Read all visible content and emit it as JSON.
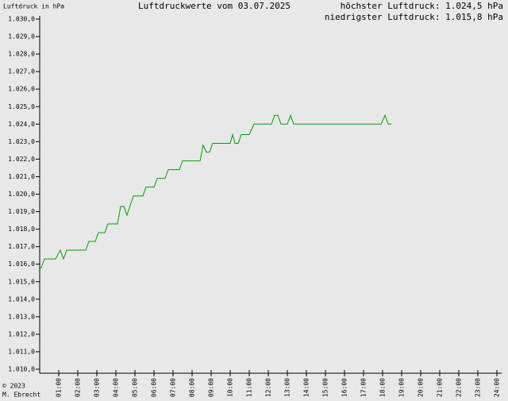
{
  "chart_data": {
    "type": "line",
    "y_label": "Luftdruck in hPa",
    "title": "Luftdruckwerte vom 03.07.2025",
    "max_text": "höchster Luftdruck: 1.024,5 hPa",
    "min_text": "niedrigster Luftdruck: 1.015,8 hPa",
    "footer": [
      "© 2023",
      "M. Ebrecht"
    ],
    "color": "#00a000",
    "x": [
      0,
      0.08,
      0.25,
      0.83,
      1.08,
      1.25,
      1.42,
      2.42,
      2.58,
      2.92,
      3.08,
      3.42,
      3.58,
      4.08,
      4.25,
      4.42,
      4.58,
      4.92,
      5.42,
      5.58,
      6.0,
      6.17,
      6.58,
      6.75,
      7.33,
      7.5,
      8.42,
      8.58,
      8.75,
      8.92,
      9.08,
      10.0,
      10.13,
      10.25,
      10.42,
      10.58,
      11.0,
      11.25,
      12.17,
      12.33,
      12.5,
      12.67,
      13.0,
      13.17,
      13.33,
      17.92,
      18.13,
      18.29,
      18.46
    ],
    "values": [
      1015.8,
      1015.8,
      1016.3,
      1016.3,
      1016.8,
      1016.3,
      1016.8,
      1016.8,
      1017.3,
      1017.3,
      1017.8,
      1017.8,
      1018.3,
      1018.3,
      1019.3,
      1019.3,
      1018.8,
      1019.9,
      1019.9,
      1020.4,
      1020.4,
      1020.9,
      1020.9,
      1021.4,
      1021.4,
      1021.9,
      1021.9,
      1022.8,
      1022.4,
      1022.4,
      1022.9,
      1022.9,
      1023.4,
      1022.9,
      1022.9,
      1023.4,
      1023.4,
      1024.0,
      1024.0,
      1024.5,
      1024.5,
      1024.0,
      1024.0,
      1024.5,
      1024.0,
      1024.0,
      1024.5,
      1024.0,
      1024.0
    ],
    "xlim": [
      0,
      24
    ],
    "xticks": [
      {
        "value": 1,
        "label": "01:00"
      },
      {
        "value": 2,
        "label": "02:00"
      },
      {
        "value": 3,
        "label": "03:00"
      },
      {
        "value": 4,
        "label": "04:00"
      },
      {
        "value": 5,
        "label": "05:00"
      },
      {
        "value": 6,
        "label": "06:00"
      },
      {
        "value": 7,
        "label": "07:00"
      },
      {
        "value": 8,
        "label": "08:00"
      },
      {
        "value": 9,
        "label": "09:00"
      },
      {
        "value": 10,
        "label": "10:00"
      },
      {
        "value": 11,
        "label": "11:00"
      },
      {
        "value": 12,
        "label": "12:00"
      },
      {
        "value": 13,
        "label": "13:00"
      },
      {
        "value": 14,
        "label": "14:00"
      },
      {
        "value": 15,
        "label": "15:00"
      },
      {
        "value": 16,
        "label": "16:00"
      },
      {
        "value": 17,
        "label": "17:00"
      },
      {
        "value": 18,
        "label": "18:00"
      },
      {
        "value": 19,
        "label": "19:00"
      },
      {
        "value": 20,
        "label": "20:00"
      },
      {
        "value": 21,
        "label": "21:00"
      },
      {
        "value": 22,
        "label": "22:00"
      },
      {
        "value": 23,
        "label": "23:00"
      },
      {
        "value": 24,
        "label": "24:00"
      }
    ],
    "ylim": [
      1010,
      1030
    ],
    "yticks": [
      {
        "value": 1010,
        "label": "1.010,0"
      },
      {
        "value": 1011,
        "label": "1.011,0"
      },
      {
        "value": 1012,
        "label": "1.012,0"
      },
      {
        "value": 1013,
        "label": "1.013,0"
      },
      {
        "value": 1014,
        "label": "1.014,0"
      },
      {
        "value": 1015,
        "label": "1.015,0"
      },
      {
        "value": 1016,
        "label": "1.016,0"
      },
      {
        "value": 1017,
        "label": "1.017,0"
      },
      {
        "value": 1018,
        "label": "1.018,0"
      },
      {
        "value": 1019,
        "label": "1.019,0"
      },
      {
        "value": 1020,
        "label": "1.020,0"
      },
      {
        "value": 1021,
        "label": "1.021,0"
      },
      {
        "value": 1022,
        "label": "1.022,0"
      },
      {
        "value": 1023,
        "label": "1.023,0"
      },
      {
        "value": 1024,
        "label": "1.024,0"
      },
      {
        "value": 1025,
        "label": "1.025,0"
      },
      {
        "value": 1026,
        "label": "1.026,0"
      },
      {
        "value": 1027,
        "label": "1.027,0"
      },
      {
        "value": 1028,
        "label": "1.028,0"
      },
      {
        "value": 1029,
        "label": "1.029,0"
      },
      {
        "value": 1030,
        "label": "1.030,0"
      }
    ]
  }
}
